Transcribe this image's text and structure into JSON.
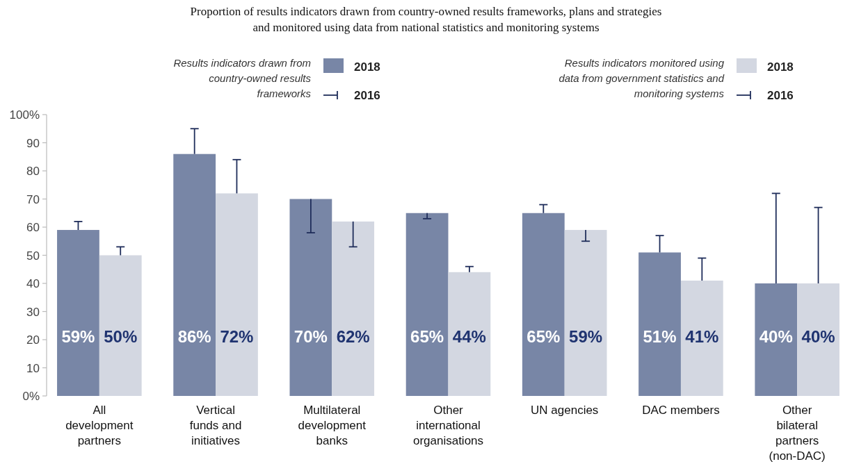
{
  "chart_data": {
    "type": "bar",
    "title": "Proportion of results indicators drawn from country-owned results frameworks, plans and strategies and monitored using data from national statistics and monitoring systems",
    "categories": [
      "All development partners",
      "Vertical funds and initiatives",
      "Multilateral development banks",
      "Other international organisations",
      "UN agencies",
      "DAC members",
      "Other bilateral partners (non-DAC)"
    ],
    "series": [
      {
        "name": "2018",
        "color": "#7886a6",
        "values": [
          59,
          86,
          70,
          65,
          65,
          51,
          40
        ],
        "value_labels": [
          "59%",
          "86%",
          "70%",
          "65%",
          "65%",
          "51%",
          "40%"
        ],
        "errors": [
          [
            59,
            62
          ],
          [
            86,
            95
          ],
          [
            58,
            70
          ],
          [
            63,
            65
          ],
          [
            65,
            68
          ],
          [
            51,
            57
          ],
          [
            40,
            72
          ]
        ]
      },
      {
        "name": "2018",
        "color": "#d3d7e1",
        "values": [
          50,
          72,
          62,
          44,
          59,
          41,
          40
        ],
        "value_labels": [
          "50%",
          "72%",
          "62%",
          "44%",
          "59%",
          "41%",
          "40%"
        ],
        "errors": [
          [
            50,
            53
          ],
          [
            72,
            84
          ],
          [
            53,
            62
          ],
          [
            44,
            46
          ],
          [
            55,
            59
          ],
          [
            41,
            49
          ],
          [
            40,
            67
          ]
        ]
      }
    ],
    "annotations": [
      "Results indicators drawn from country-owned results frameworks",
      "2016",
      "Results indicators monitored using data from government statistics and monitoring systems",
      "2016"
    ],
    "ylim": [
      0,
      100
    ],
    "yticks": [
      {
        "value": 0,
        "label": "0%"
      },
      10,
      20,
      30,
      40,
      50,
      60,
      70,
      80,
      90,
      {
        "value": 100,
        "label": "100%"
      }
    ],
    "legend": "top"
  }
}
